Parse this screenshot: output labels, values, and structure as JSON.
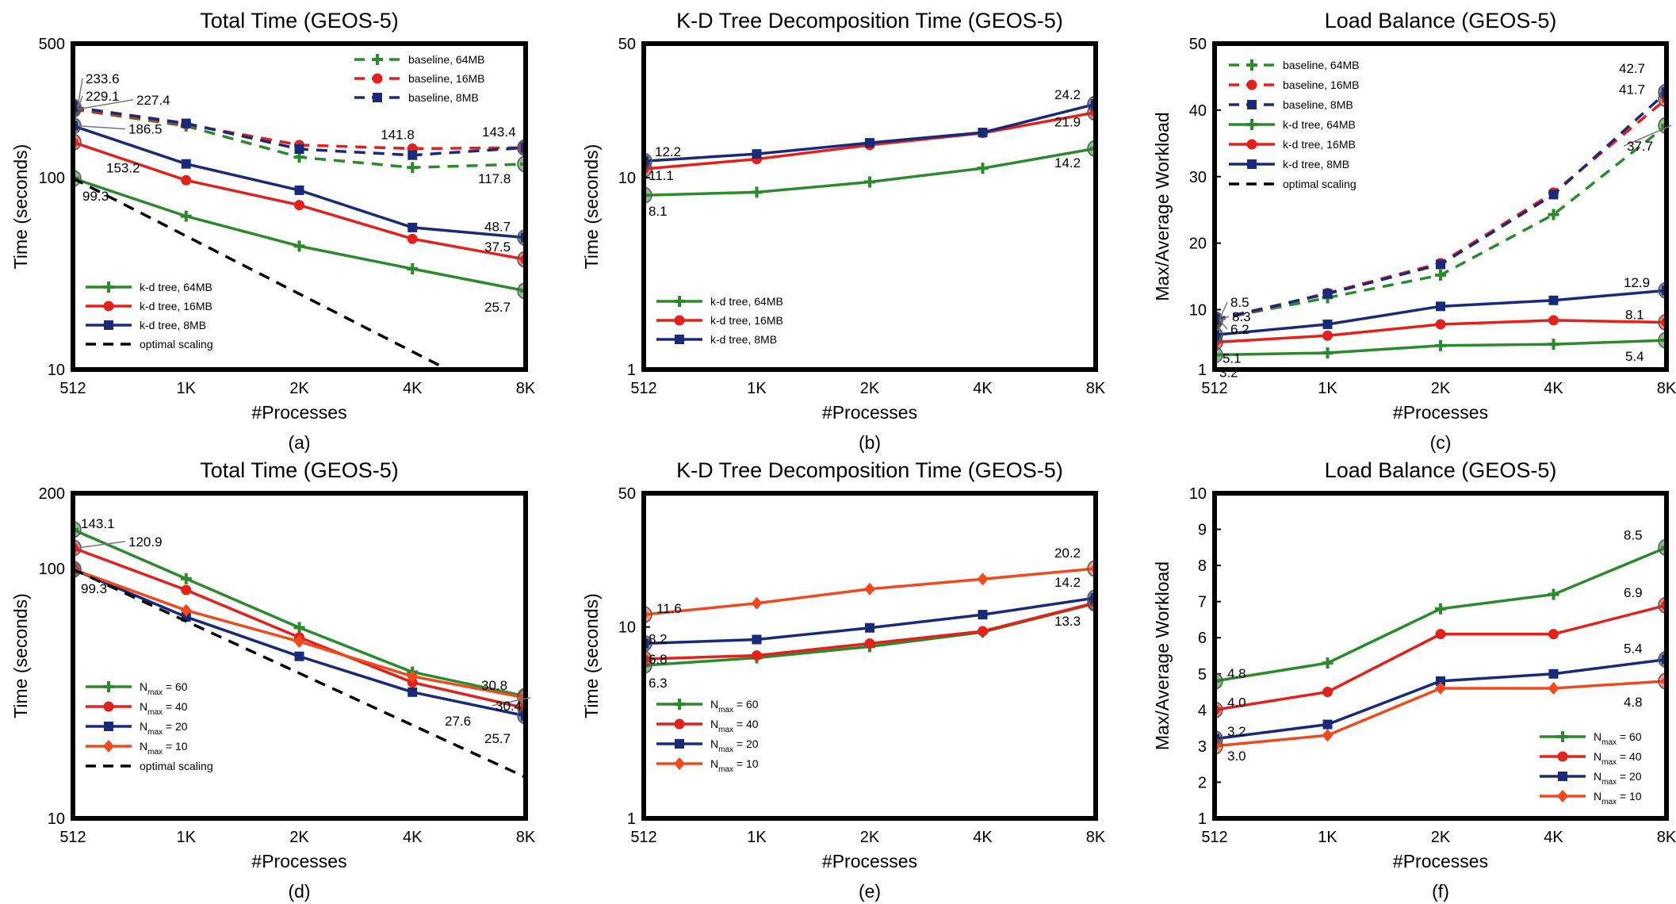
{
  "figure": {
    "chart_data": [
      {
        "id": "a",
        "type": "line",
        "caption": "(a)",
        "title": "Total Time (GEOS-5)",
        "xlabel": "#Processes",
        "ylabel": "Time (seconds)",
        "categories": [
          "512",
          "1K",
          "2K",
          "4K",
          "8K"
        ],
        "yscale": "log",
        "ylim": [
          10,
          500
        ],
        "yticks": [
          10,
          100,
          500
        ],
        "series": [
          {
            "name": "baseline, 64MB",
            "color": "#2b8a2b",
            "dash": true,
            "marker": "plus",
            "values": [
              227.4,
              186.0,
              128.0,
              113.0,
              117.8
            ]
          },
          {
            "name": "baseline, 16MB",
            "color": "#e3211c",
            "dash": true,
            "marker": "circle",
            "values": [
              229.1,
              190.0,
              148.0,
              141.8,
              143.4
            ]
          },
          {
            "name": "baseline, 8MB",
            "color": "#1a2a7a",
            "dash": true,
            "marker": "square",
            "values": [
              233.6,
              192.0,
              141.0,
              131.0,
              143.4
            ]
          },
          {
            "name": "k-d tree, 64MB",
            "color": "#2b8a2b",
            "dash": false,
            "marker": "plus",
            "values": [
              99.3,
              63.0,
              44.0,
              33.5,
              25.7
            ]
          },
          {
            "name": "k-d tree, 16MB",
            "color": "#e3211c",
            "dash": false,
            "marker": "circle",
            "values": [
              153.2,
              97.0,
              72.0,
              48.0,
              37.5
            ]
          },
          {
            "name": "k-d tree, 8MB",
            "color": "#1a2a7a",
            "dash": false,
            "marker": "square",
            "values": [
              186.5,
              118.0,
              86.0,
              55.0,
              48.7
            ]
          },
          {
            "name": "optimal scaling",
            "color": "#000000",
            "dash": true,
            "marker": "none",
            "values": [
              99.3,
              49.65,
              24.8,
              12.4,
              6.2
            ]
          }
        ],
        "legend_upper": [
          "baseline, 64MB",
          "baseline, 16MB",
          "baseline, 8MB"
        ],
        "legend_lower": [
          "k-d tree, 64MB",
          "k-d tree, 16MB",
          "k-d tree, 8MB",
          "optimal scaling"
        ],
        "annotations": [
          "233.6",
          "229.1",
          "227.4",
          "186.5",
          "153.2",
          "99.3",
          "141.8",
          "143.4",
          "117.8",
          "48.7",
          "37.5",
          "25.7"
        ]
      },
      {
        "id": "b",
        "type": "line",
        "caption": "(b)",
        "title": "K-D Tree Decomposition Time (GEOS-5)",
        "xlabel": "#Processes",
        "ylabel": "Time (seconds)",
        "categories": [
          "512",
          "1K",
          "2K",
          "4K",
          "8K"
        ],
        "yscale": "log",
        "ylim": [
          1,
          50
        ],
        "yticks": [
          1,
          10,
          50
        ],
        "series": [
          {
            "name": "k-d tree, 64MB",
            "color": "#2b8a2b",
            "dash": false,
            "marker": "plus",
            "values": [
              8.1,
              8.4,
              9.5,
              11.2,
              14.2
            ]
          },
          {
            "name": "k-d tree, 16MB",
            "color": "#e3211c",
            "dash": false,
            "marker": "circle",
            "values": [
              11.1,
              12.5,
              14.8,
              17.1,
              21.9
            ]
          },
          {
            "name": "k-d tree, 8MB",
            "color": "#1a2a7a",
            "dash": false,
            "marker": "square",
            "values": [
              12.2,
              13.3,
              15.2,
              17.2,
              24.2
            ]
          }
        ],
        "annotations": [
          "12.2",
          "11.1",
          "8.1",
          "24.2",
          "21.9",
          "14.2"
        ]
      },
      {
        "id": "c",
        "type": "line",
        "caption": "(c)",
        "title": "Load Balance (GEOS-5)",
        "xlabel": "#Processes",
        "ylabel": "Max/Average Workload",
        "categories": [
          "512",
          "1K",
          "2K",
          "4K",
          "8K"
        ],
        "yscale": "linear",
        "ylim": [
          1,
          50
        ],
        "yticks": [
          1,
          10,
          20,
          30,
          40,
          50
        ],
        "series": [
          {
            "name": "baseline, 64MB",
            "color": "#2b8a2b",
            "dash": true,
            "marker": "plus",
            "values": [
              8.5,
              11.8,
              15.2,
              24.3,
              37.7
            ]
          },
          {
            "name": "baseline, 16MB",
            "color": "#e3211c",
            "dash": true,
            "marker": "circle",
            "values": [
              8.3,
              12.5,
              17.0,
              27.6,
              41.7
            ]
          },
          {
            "name": "baseline, 8MB",
            "color": "#1a2a7a",
            "dash": true,
            "marker": "square",
            "values": [
              8.5,
              12.4,
              16.8,
              27.3,
              42.7
            ]
          },
          {
            "name": "k-d tree, 64MB",
            "color": "#2b8a2b",
            "dash": false,
            "marker": "plus",
            "values": [
              3.2,
              3.5,
              4.6,
              4.8,
              5.4
            ]
          },
          {
            "name": "k-d tree, 16MB",
            "color": "#e3211c",
            "dash": false,
            "marker": "circle",
            "values": [
              5.1,
              6.1,
              7.8,
              8.4,
              8.1
            ]
          },
          {
            "name": "k-d tree, 8MB",
            "color": "#1a2a7a",
            "dash": false,
            "marker": "square",
            "values": [
              6.2,
              7.8,
              10.5,
              11.4,
              12.9
            ]
          }
        ],
        "legend": [
          "baseline, 64MB",
          "baseline, 16MB",
          "baseline, 8MB",
          "k-d tree, 64MB",
          "k-d tree, 16MB",
          "k-d tree, 8MB",
          "optimal scaling"
        ],
        "annotations": [
          "8.5",
          "8.3",
          "6.2",
          "5.1",
          "3.2",
          "42.7",
          "41.7",
          "37.7",
          "12.9",
          "8.1",
          "5.4"
        ]
      },
      {
        "id": "d",
        "type": "line",
        "caption": "(d)",
        "title": "Total Time (GEOS-5)",
        "xlabel": "#Processes",
        "ylabel": "Time (seconds)",
        "categories": [
          "512",
          "1K",
          "2K",
          "4K",
          "8K"
        ],
        "yscale": "log",
        "ylim": [
          10,
          200
        ],
        "yticks": [
          10,
          100,
          200
        ],
        "series": [
          {
            "name": "N_max = 60",
            "color": "#2b8a2b",
            "dash": false,
            "marker": "plus",
            "values": [
              143.1,
              91.0,
              58.0,
              38.5,
              30.8
            ]
          },
          {
            "name": "N_max = 40",
            "color": "#e3211c",
            "dash": false,
            "marker": "circle",
            "values": [
              120.9,
              82.0,
              53.0,
              35.0,
              27.6
            ]
          },
          {
            "name": "N_max = 20",
            "color": "#1a2a7a",
            "dash": false,
            "marker": "square",
            "values": [
              99.3,
              64.0,
              44.5,
              32.0,
              25.7
            ]
          },
          {
            "name": "N_max = 10",
            "color": "#ef4a1e",
            "dash": false,
            "marker": "diamond",
            "values": [
              99.3,
              68.0,
              51.0,
              37.0,
              30.4
            ]
          },
          {
            "name": "optimal scaling",
            "color": "#000000",
            "dash": true,
            "marker": "none",
            "values": [
              99.3,
              61.5,
              38.1,
              23.6,
              14.6
            ]
          }
        ],
        "annotations": [
          "143.1",
          "120.9",
          "99.3",
          "30.8",
          "30.4",
          "27.6",
          "25.7"
        ]
      },
      {
        "id": "e",
        "type": "line",
        "caption": "(e)",
        "title": "K-D Tree Decomposition Time (GEOS-5)",
        "xlabel": "#Processes",
        "ylabel": "Time (seconds)",
        "categories": [
          "512",
          "1K",
          "2K",
          "4K",
          "8K"
        ],
        "yscale": "log",
        "ylim": [
          1,
          50
        ],
        "yticks": [
          1,
          10,
          50
        ],
        "series": [
          {
            "name": "N_max = 60",
            "color": "#2b8a2b",
            "dash": false,
            "marker": "plus",
            "values": [
              6.3,
              6.9,
              7.9,
              9.4,
              13.3
            ]
          },
          {
            "name": "N_max = 40",
            "color": "#e3211c",
            "dash": false,
            "marker": "circle",
            "values": [
              6.8,
              7.1,
              8.2,
              9.5,
              13.4
            ]
          },
          {
            "name": "N_max = 20",
            "color": "#1a2a7a",
            "dash": false,
            "marker": "square",
            "values": [
              8.2,
              8.6,
              9.9,
              11.6,
              14.2
            ]
          },
          {
            "name": "N_max = 10",
            "color": "#ef4a1e",
            "dash": false,
            "marker": "diamond",
            "values": [
              11.6,
              13.3,
              15.8,
              17.8,
              20.2
            ]
          }
        ],
        "annotations": [
          "11.6",
          "8.2",
          "6.8",
          "6.3",
          "20.2",
          "14.2",
          "13.3"
        ]
      },
      {
        "id": "f",
        "type": "line",
        "caption": "(f)",
        "title": "Load Balance (GEOS-5)",
        "xlabel": "#Processes",
        "ylabel": "Max/Average Workload",
        "categories": [
          "512",
          "1K",
          "2K",
          "4K",
          "8K"
        ],
        "yscale": "linear",
        "ylim": [
          1,
          10
        ],
        "yticks": [
          1,
          2,
          3,
          4,
          5,
          6,
          7,
          8,
          9,
          10
        ],
        "series": [
          {
            "name": "N_max = 60",
            "color": "#2b8a2b",
            "dash": false,
            "marker": "plus",
            "values": [
              4.8,
              5.3,
              6.8,
              7.2,
              8.5
            ]
          },
          {
            "name": "N_max = 40",
            "color": "#e3211c",
            "dash": false,
            "marker": "circle",
            "values": [
              4.0,
              4.5,
              6.1,
              6.1,
              6.9
            ]
          },
          {
            "name": "N_max = 20",
            "color": "#1a2a7a",
            "dash": false,
            "marker": "square",
            "values": [
              3.2,
              3.6,
              4.8,
              5.0,
              5.4
            ]
          },
          {
            "name": "N_max = 10",
            "color": "#ef4a1e",
            "dash": false,
            "marker": "diamond",
            "values": [
              3.0,
              3.3,
              4.6,
              4.6,
              4.8
            ]
          }
        ],
        "annotations": [
          "4.8",
          "4.0",
          "3.2",
          "3.0",
          "8.5",
          "6.9",
          "5.4",
          "4.8"
        ]
      }
    ]
  }
}
